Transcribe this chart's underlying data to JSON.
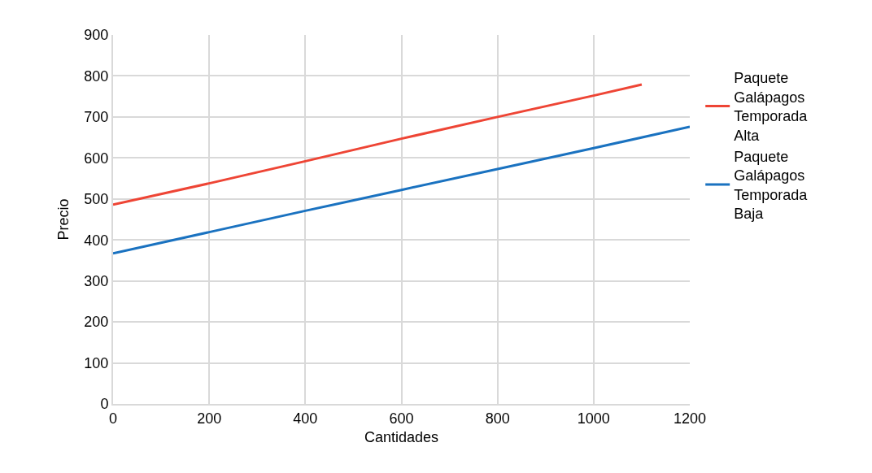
{
  "chart_data": {
    "type": "line",
    "xlabel": "Cantidades",
    "ylabel": "Precio",
    "xlim": [
      0,
      1200
    ],
    "xticks": [
      0,
      200,
      400,
      600,
      800,
      1000,
      1200
    ],
    "ylim": [
      0,
      900
    ],
    "yticks": [
      0,
      100,
      200,
      300,
      400,
      500,
      600,
      700,
      800,
      900
    ],
    "grid": true,
    "legend": "right",
    "marker": "none",
    "line_style": "solid",
    "series": [
      {
        "name": "Paquete Galápagos Temporada Alta",
        "color": "#ee4535",
        "x": [
          0,
          200,
          400,
          600,
          800,
          1000,
          1100
        ],
        "values": [
          486,
          538,
          592,
          647,
          700,
          752,
          779
        ]
      },
      {
        "name": "Paquete Galápagos Temporada Baja",
        "color": "#1a72c0",
        "x": [
          0,
          200,
          400,
          600,
          800,
          1000,
          1200
        ],
        "values": [
          367,
          419,
          471,
          522,
          573,
          624,
          676
        ]
      }
    ]
  }
}
